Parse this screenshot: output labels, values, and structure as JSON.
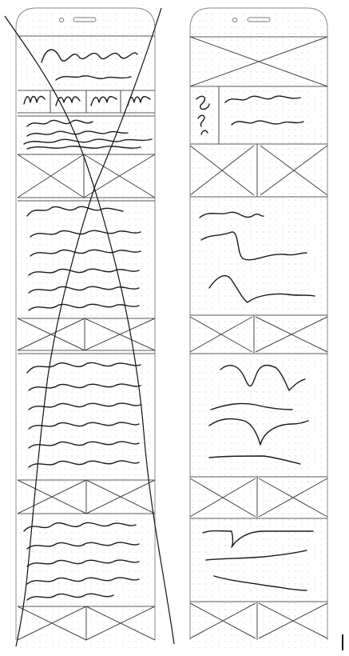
{
  "wireframes": [
    {
      "id": "left",
      "crossed_out": true
    },
    {
      "id": "right",
      "crossed_out": false
    }
  ],
  "colors": {
    "ink": "#1a1a1a",
    "frame": "#8a8a8a",
    "dot": "#d9d9d9"
  }
}
